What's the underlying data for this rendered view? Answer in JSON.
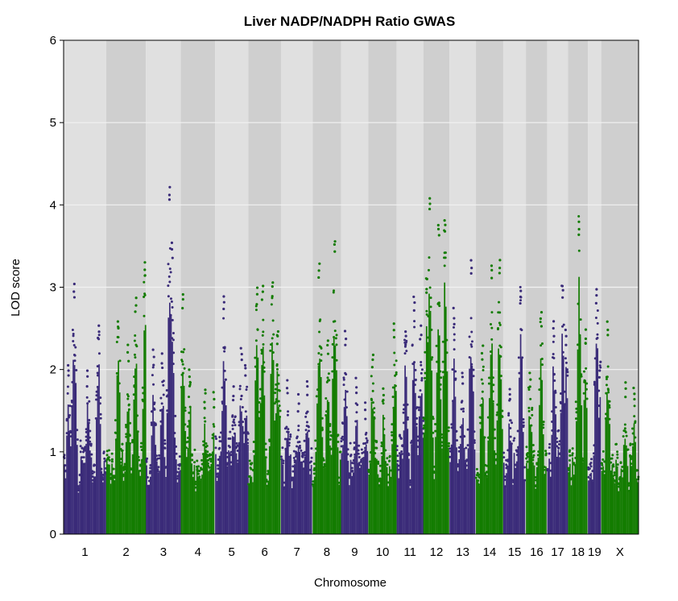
{
  "chart_data": {
    "type": "scatter",
    "title": "Liver NADP/NADPH Ratio GWAS",
    "xlabel": "Chromosome",
    "ylabel": "LOD score",
    "ylim": [
      0,
      6
    ],
    "yticks": [
      "0",
      "1",
      "2",
      "3",
      "4",
      "5",
      "6"
    ],
    "grid": true,
    "colors": {
      "odd": "#3a2b79",
      "even": "#137c00",
      "band_light": "#e0e0e0",
      "band_dark": "#cfcfcf",
      "gridline": "#f2f2f2"
    },
    "chromosomes": [
      {
        "name": "1",
        "length": 195,
        "peaks": [
          [
            48,
            3.05
          ],
          [
            22,
            2.1
          ],
          [
            160,
            2.55
          ],
          [
            110,
            2.0
          ]
        ]
      },
      {
        "name": "2",
        "length": 182,
        "peaks": [
          [
            55,
            2.6
          ],
          [
            135,
            2.9
          ],
          [
            178,
            3.32
          ],
          [
            100,
            2.3
          ]
        ]
      },
      {
        "name": "3",
        "length": 160,
        "peaks": [
          [
            35,
            2.25
          ],
          [
            110,
            4.25
          ],
          [
            120,
            3.55
          ],
          [
            75,
            2.2
          ]
        ]
      },
      {
        "name": "4",
        "length": 157,
        "peaks": [
          [
            10,
            2.95
          ],
          [
            40,
            2.0
          ],
          [
            110,
            1.8
          ],
          [
            150,
            1.75
          ]
        ]
      },
      {
        "name": "5",
        "length": 152,
        "peaks": [
          [
            40,
            2.9
          ],
          [
            120,
            2.3
          ],
          [
            140,
            2.1
          ],
          [
            85,
            1.8
          ]
        ]
      },
      {
        "name": "6",
        "length": 150,
        "peaks": [
          [
            40,
            3.0
          ],
          [
            65,
            3.05
          ],
          [
            110,
            3.1
          ],
          [
            135,
            2.5
          ]
        ]
      },
      {
        "name": "7",
        "length": 145,
        "peaks": [
          [
            30,
            1.9
          ],
          [
            80,
            1.7
          ],
          [
            120,
            1.9
          ]
        ]
      },
      {
        "name": "8",
        "length": 130,
        "peaks": [
          [
            30,
            3.32
          ],
          [
            100,
            3.6
          ],
          [
            70,
            2.4
          ]
        ]
      },
      {
        "name": "9",
        "length": 125,
        "peaks": [
          [
            20,
            2.5
          ],
          [
            70,
            1.9
          ],
          [
            110,
            1.6
          ]
        ]
      },
      {
        "name": "10",
        "length": 130,
        "peaks": [
          [
            20,
            2.2
          ],
          [
            70,
            1.8
          ],
          [
            120,
            2.6
          ]
        ]
      },
      {
        "name": "11",
        "length": 122,
        "peaks": [
          [
            40,
            2.5
          ],
          [
            80,
            2.9
          ],
          [
            110,
            2.55
          ]
        ]
      },
      {
        "name": "12",
        "length": 120,
        "peaks": [
          [
            30,
            4.12
          ],
          [
            70,
            3.8
          ],
          [
            100,
            3.85
          ],
          [
            15,
            3.1
          ]
        ]
      },
      {
        "name": "13",
        "length": 121,
        "peaks": [
          [
            20,
            2.75
          ],
          [
            60,
            2.0
          ],
          [
            100,
            3.35
          ]
        ]
      },
      {
        "name": "14",
        "length": 125,
        "peaks": [
          [
            70,
            3.3
          ],
          [
            110,
            3.35
          ],
          [
            30,
            2.3
          ]
        ]
      },
      {
        "name": "15",
        "length": 104,
        "peaks": [
          [
            30,
            1.8
          ],
          [
            80,
            3.0
          ]
        ]
      },
      {
        "name": "16",
        "length": 98,
        "peaks": [
          [
            20,
            2.0
          ],
          [
            70,
            2.7
          ]
        ]
      },
      {
        "name": "17",
        "length": 95,
        "peaks": [
          [
            30,
            2.6
          ],
          [
            70,
            3.05
          ],
          [
            85,
            2.5
          ]
        ]
      },
      {
        "name": "18",
        "length": 91,
        "peaks": [
          [
            50,
            3.82
          ],
          [
            80,
            2.5
          ]
        ]
      },
      {
        "name": "19",
        "length": 61,
        "peaks": [
          [
            40,
            3.0
          ],
          [
            55,
            2.1
          ]
        ]
      },
      {
        "name": "X",
        "length": 171,
        "peaks": [
          [
            30,
            2.6
          ],
          [
            110,
            1.85
          ],
          [
            150,
            1.8
          ]
        ]
      }
    ]
  }
}
